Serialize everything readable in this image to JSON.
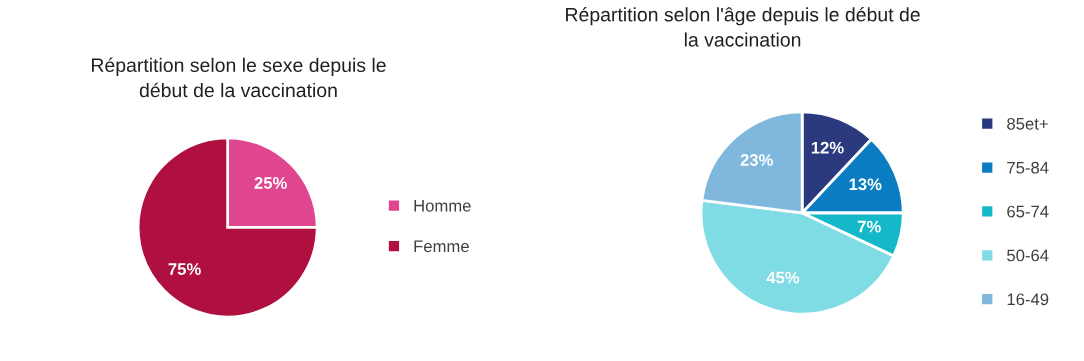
{
  "chart_data": [
    {
      "type": "pie",
      "title": "Répartition selon le sexe depuis le\ndébut de la vaccination",
      "categories": [
        "Homme",
        "Femme"
      ],
      "values": [
        25,
        75
      ],
      "colors": [
        "#e0468f",
        "#b0103f"
      ],
      "value_labels": [
        "25%",
        "75%"
      ],
      "legend": "right"
    },
    {
      "type": "pie",
      "title": "Répartition selon l'âge depuis le début de\nla vaccination",
      "categories": [
        "85et+",
        "75-84",
        "65-74",
        "50-64",
        "16-49"
      ],
      "values": [
        12,
        13,
        7,
        45,
        23
      ],
      "colors": [
        "#2b3a7e",
        "#0a7cc1",
        "#14b8c8",
        "#7fdbe4",
        "#7fb8dc"
      ],
      "value_labels": [
        "12%",
        "13%",
        "7%",
        "45%",
        "23%"
      ],
      "legend": "right"
    }
  ]
}
